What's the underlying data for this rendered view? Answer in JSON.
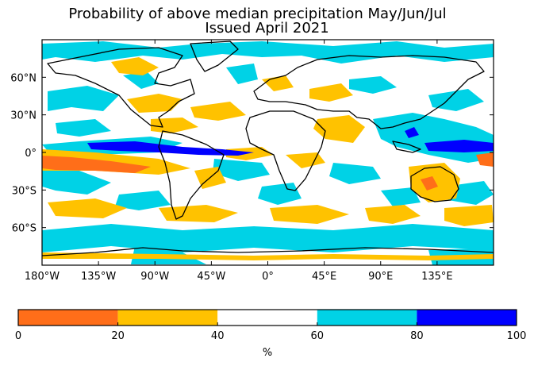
{
  "title_line1": "Probability of above median precipitation May/Jun/Jul",
  "title_line2": "Issued April 2021",
  "map": {
    "lat_ticks": [
      {
        "label": "60°N",
        "lat": 60
      },
      {
        "label": "30°N",
        "lat": 30
      },
      {
        "label": "0°",
        "lat": 0
      },
      {
        "label": "30°S",
        "lat": -30
      },
      {
        "label": "60°S",
        "lat": -60
      }
    ],
    "lon_ticks": [
      {
        "label": "180°W",
        "lon": -180
      },
      {
        "label": "135°W",
        "lon": -135
      },
      {
        "label": "90°W",
        "lon": -90
      },
      {
        "label": "45°W",
        "lon": -45
      },
      {
        "label": "0°",
        "lon": 0
      },
      {
        "label": "45°E",
        "lon": 45
      },
      {
        "label": "90°E",
        "lon": 90
      },
      {
        "label": "135°E",
        "lon": 135
      }
    ],
    "lon_range": [
      -180,
      180
    ],
    "lat_range": [
      -90,
      90
    ]
  },
  "colorbar": {
    "ticks": [
      "0",
      "20",
      "40",
      "60",
      "80",
      "100"
    ],
    "unit": "%",
    "colors": [
      "#ff6e19",
      "#ffc200",
      "#ffffff",
      "#00d2e6",
      "#0000ff"
    ]
  },
  "colors": {
    "ocean_orange": "#ff6e19",
    "amber": "#ffc200",
    "cyan": "#00d2e6",
    "blue": "#0000ff",
    "coast": "#000000"
  }
}
